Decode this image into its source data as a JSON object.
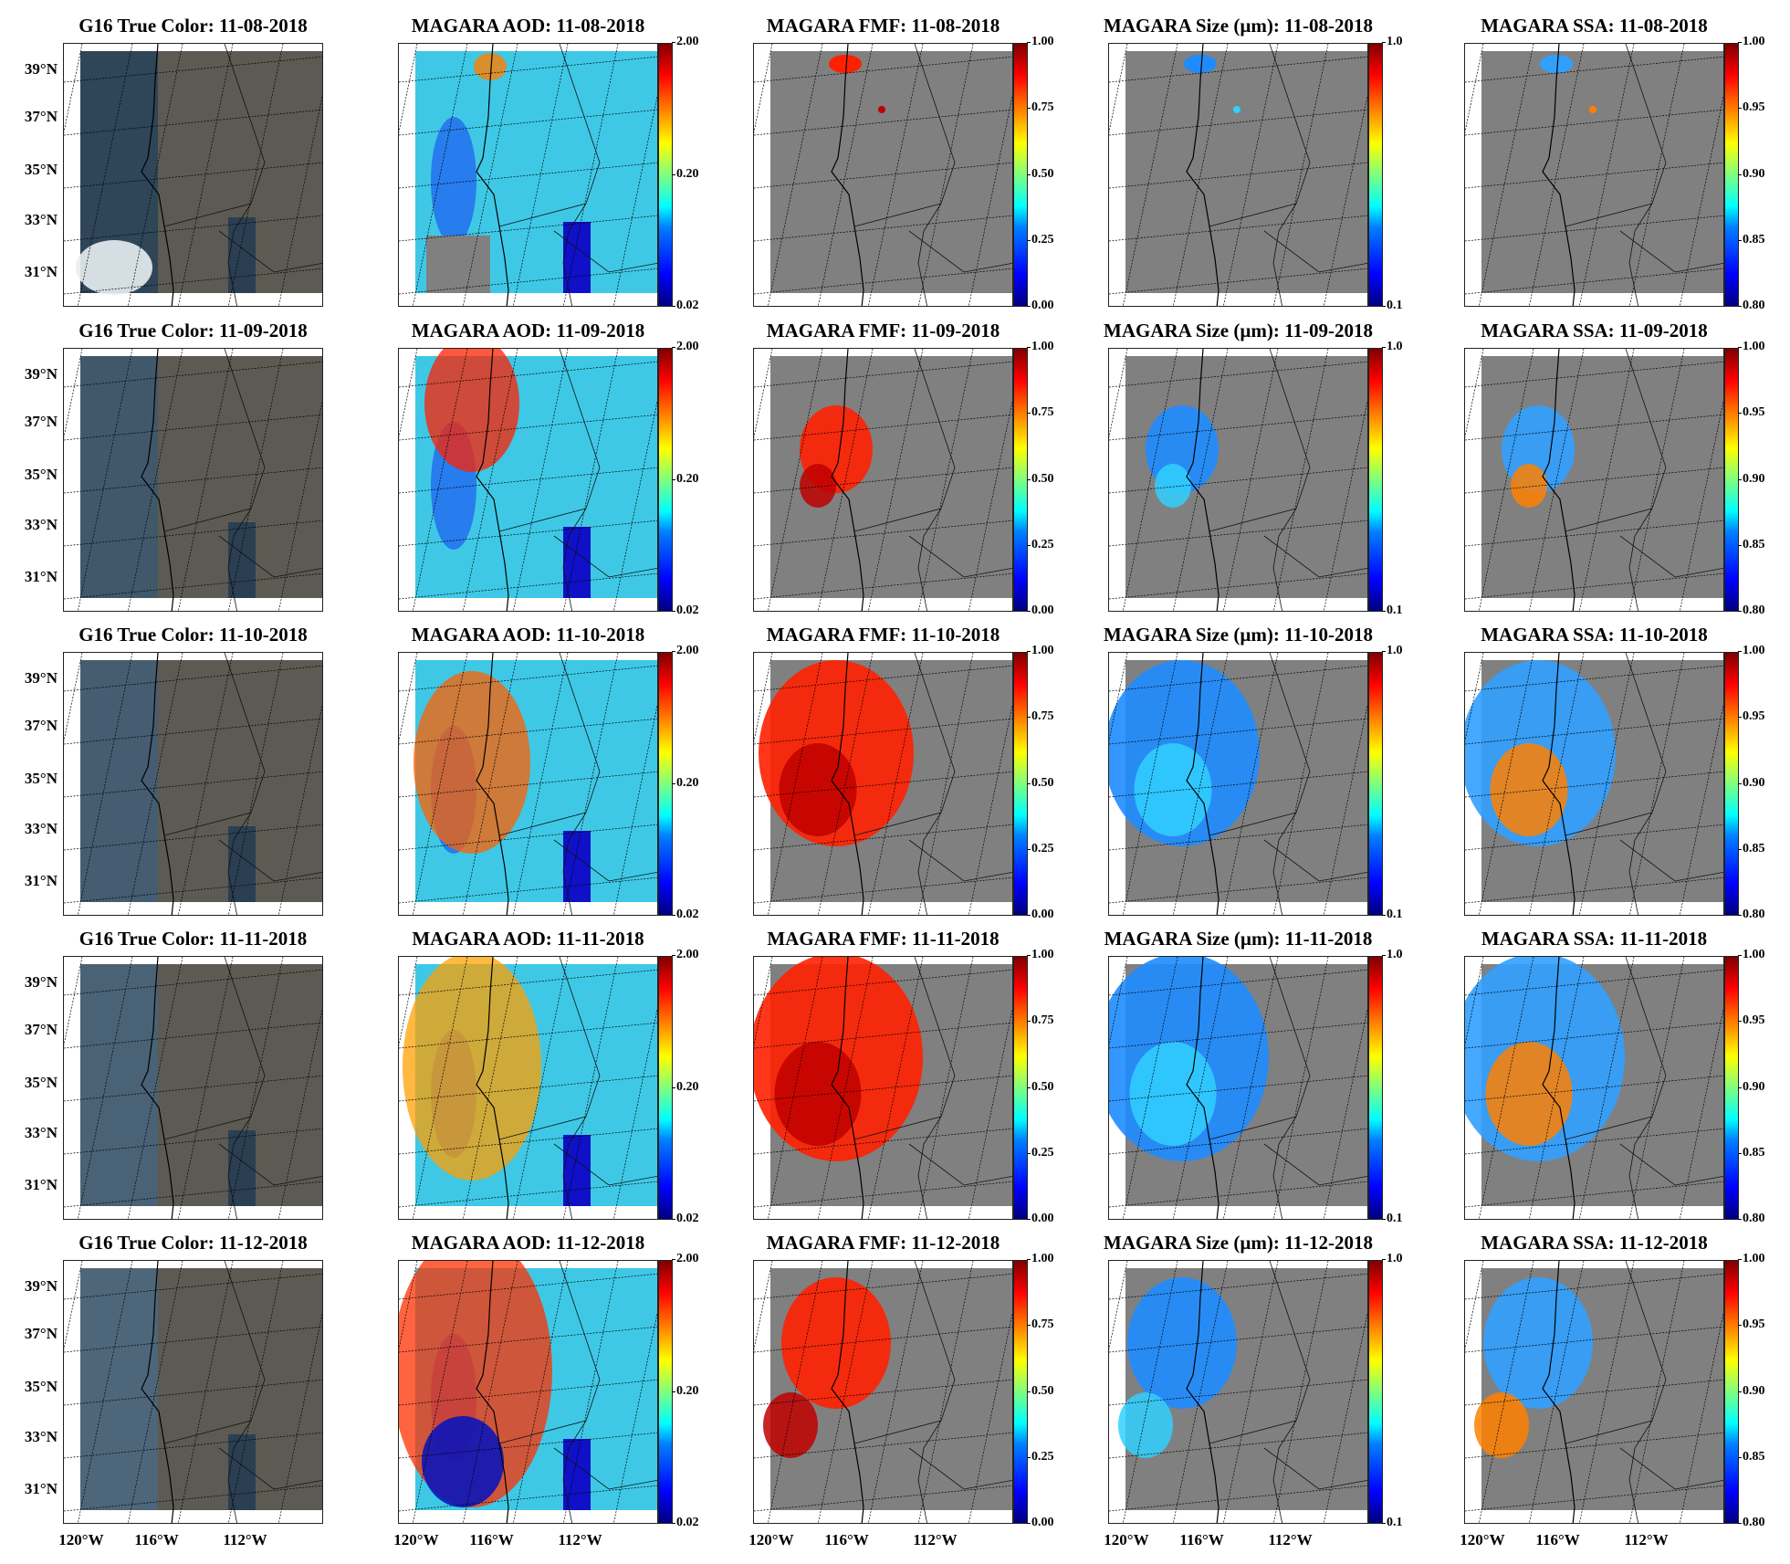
{
  "dates": [
    "11-08-2018",
    "11-09-2018",
    "11-10-2018",
    "11-11-2018",
    "11-12-2018"
  ],
  "columns": [
    {
      "key": "truecolor",
      "title_prefix": "G16 True Color: ",
      "colorbar": null
    },
    {
      "key": "aod",
      "title_prefix": "MAGARA AOD: ",
      "colorbar": {
        "ticks": [
          "2.00",
          "0.20",
          "0.02"
        ],
        "positions": [
          1,
          0.5,
          0
        ]
      }
    },
    {
      "key": "fmf",
      "title_prefix": "MAGARA FMF: ",
      "colorbar": {
        "ticks": [
          "1.00",
          "0.75",
          "0.50",
          "0.25",
          "0.00"
        ],
        "positions": [
          1,
          0.75,
          0.5,
          0.25,
          0
        ]
      }
    },
    {
      "key": "size",
      "title_prefix": "MAGARA Size (µm): ",
      "colorbar": {
        "ticks": [
          "1.0",
          "0.1"
        ],
        "positions": [
          1,
          0
        ]
      }
    },
    {
      "key": "ssa",
      "title_prefix": "MAGARA SSA: ",
      "colorbar": {
        "ticks": [
          "1.00",
          "0.95",
          "0.90",
          "0.85",
          "0.80"
        ],
        "positions": [
          1,
          0.75,
          0.5,
          0.25,
          0
        ]
      }
    }
  ],
  "lat_labels": [
    "39°N",
    "37°N",
    "35°N",
    "33°N",
    "31°N"
  ],
  "lon_labels": [
    "120°W",
    "116°W",
    "112°W"
  ],
  "colors": {
    "no_data": "#808080",
    "ocean": "#2f4558",
    "land": "#6f6455",
    "colormap": "jet"
  }
}
